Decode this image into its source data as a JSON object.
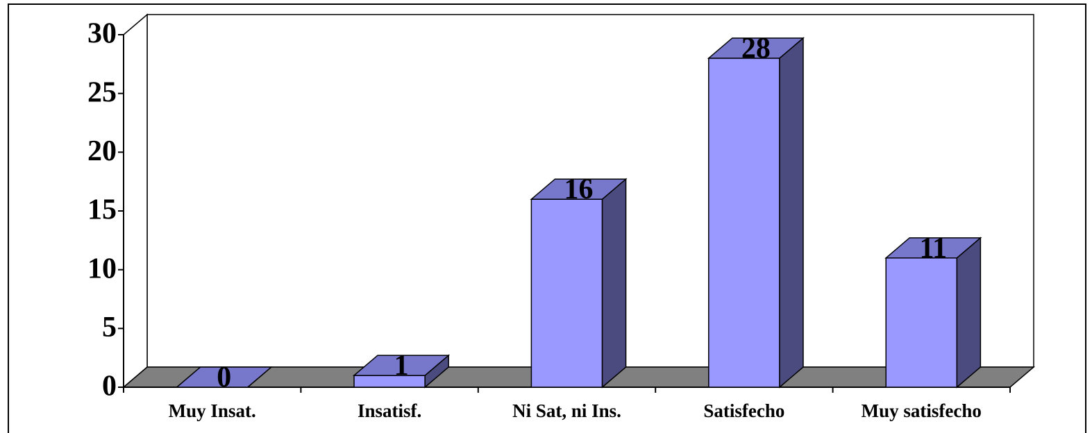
{
  "chart_data": {
    "type": "bar3d",
    "categories": [
      "Muy Insat.",
      "Insatisf.",
      "Ni Sat, ni Ins.",
      "Satisfecho",
      "Muy satisfecho"
    ],
    "values": [
      0,
      1,
      16,
      28,
      11
    ],
    "color": "#9999ff",
    "top_color": "#7777cc",
    "side_color": "#4b4b80",
    "floor_color": "#808080",
    "ylim": [
      0,
      30
    ],
    "yticks": [
      0,
      5,
      10,
      15,
      20,
      25,
      30
    ],
    "grid": false
  }
}
